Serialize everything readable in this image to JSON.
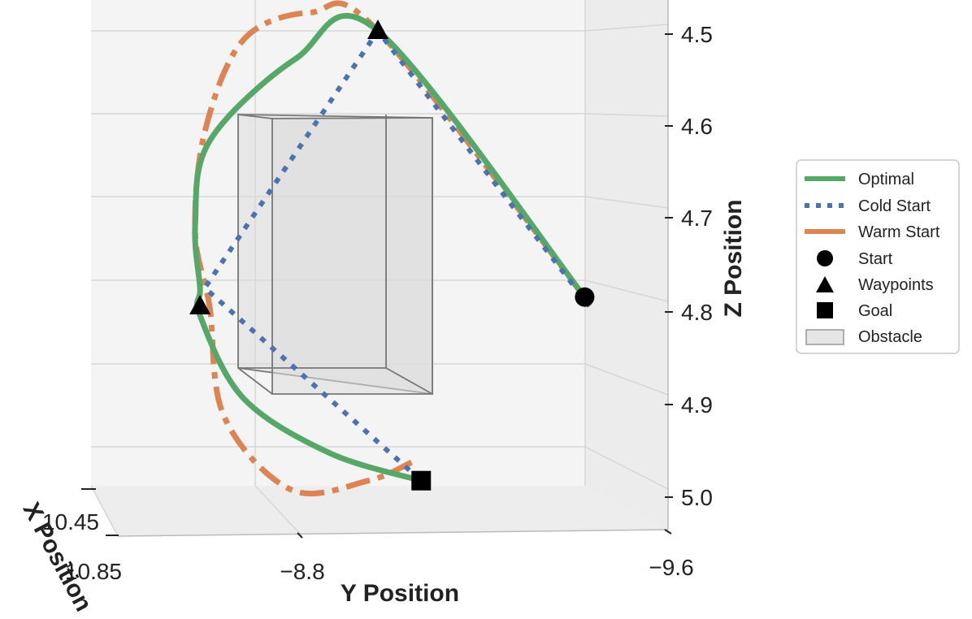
{
  "chart_data": {
    "type": "line",
    "title": "",
    "xlabel": "X Position",
    "ylabel": "Y Position",
    "zlabel": "Z Position",
    "x_ticks": [
      "10.45",
      "10.85"
    ],
    "y_ticks": [
      "−8.8",
      "−9.6"
    ],
    "z_ticks": [
      "4.5",
      "4.6",
      "4.7",
      "4.8",
      "4.9",
      "5.0"
    ],
    "ylim": [
      -8.4,
      -9.6
    ],
    "zlim": [
      4.45,
      5.05
    ],
    "series": [
      {
        "name": "Optimal",
        "style": "solid",
        "color": "#55a868",
        "points": [
          [
            -9.43,
            4.79
          ],
          [
            -9.0,
            4.5
          ],
          [
            -8.83,
            4.53
          ],
          [
            -8.65,
            4.62
          ],
          [
            -8.62,
            4.71
          ],
          [
            -8.63,
            4.78
          ],
          [
            -8.63,
            4.81
          ],
          [
            -8.72,
            4.9
          ],
          [
            -8.9,
            4.96
          ],
          [
            -9.09,
            4.99
          ]
        ]
      },
      {
        "name": "Cold Start",
        "style": "dotted",
        "color": "#4c72b0",
        "points": [
          [
            -9.44,
            4.8
          ],
          [
            -9.0,
            4.5
          ],
          [
            -8.64,
            4.78
          ],
          [
            -9.09,
            4.99
          ]
        ]
      },
      {
        "name": "Warm Start",
        "style": "dashdot",
        "color": "#dd8452",
        "points": [
          [
            -9.43,
            4.79
          ],
          [
            -9.0,
            4.5
          ],
          [
            -8.86,
            4.48
          ],
          [
            -8.72,
            4.51
          ],
          [
            -8.64,
            4.61
          ],
          [
            -8.62,
            4.72
          ],
          [
            -8.65,
            4.8
          ],
          [
            -8.68,
            4.92
          ],
          [
            -8.82,
            5.0
          ],
          [
            -8.98,
            4.99
          ],
          [
            -9.07,
            4.97
          ]
        ]
      }
    ],
    "markers": [
      {
        "name": "Start",
        "shape": "circle",
        "point": [
          -9.43,
          4.79
        ]
      },
      {
        "name": "Waypoints",
        "shape": "triangle",
        "points": [
          [
            -9.0,
            4.5
          ],
          [
            -8.63,
            4.8
          ]
        ]
      },
      {
        "name": "Goal",
        "shape": "square",
        "point": [
          -9.09,
          4.99
        ]
      }
    ],
    "obstacle": {
      "name": "Obstacle",
      "y_range": [
        -8.75,
        -9.05
      ],
      "z_range": [
        4.6,
        4.88
      ]
    },
    "legend": {
      "position": "right",
      "entries": [
        "Optimal",
        "Cold Start",
        "Warm Start",
        "Start",
        "Waypoints",
        "Goal",
        "Obstacle"
      ]
    },
    "colors": {
      "optimal": "#55a868",
      "cold": "#4c72b0",
      "warm": "#dd8452",
      "obstacle": "#dcdcdc",
      "pane": "#f4f4f4",
      "grid": "#d6d6d6"
    }
  }
}
